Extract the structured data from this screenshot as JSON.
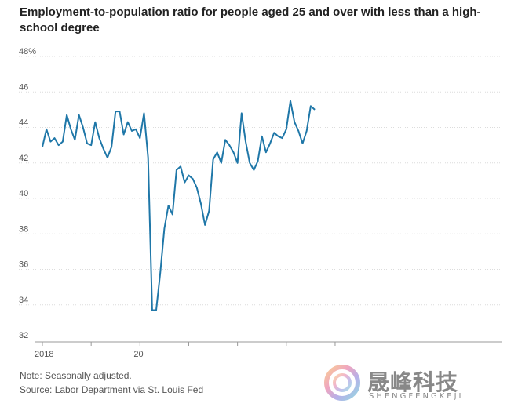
{
  "chart_data": {
    "type": "line",
    "title": "Employment-to-population ratio for people aged 25 and over with less than a high-school degree",
    "ylim": [
      32,
      48
    ],
    "yticks": [
      32,
      34,
      36,
      38,
      40,
      42,
      44,
      46,
      48
    ],
    "ytick_labels": [
      "32",
      "34",
      "36",
      "38",
      "40",
      "42",
      "44",
      "46",
      "48%"
    ],
    "x_start": "2018-01",
    "xtick_labels": [
      {
        "month_index": 0,
        "label": "2018"
      },
      {
        "month_index": 24,
        "label": "'20"
      }
    ],
    "minor_year_ticks": [
      12,
      36,
      48,
      60,
      72
    ],
    "series": [
      {
        "color": "#1f77a8",
        "values": [
          42.9,
          43.9,
          43.2,
          43.4,
          43.0,
          43.2,
          44.7,
          43.9,
          43.3,
          44.7,
          44.0,
          43.1,
          43.0,
          44.3,
          43.4,
          42.8,
          42.3,
          42.9,
          44.9,
          44.9,
          43.6,
          44.3,
          43.8,
          43.9,
          43.4,
          44.8,
          42.3,
          33.7,
          33.7,
          35.8,
          38.3,
          39.6,
          39.1,
          41.6,
          41.8,
          40.9,
          41.3,
          41.1,
          40.6,
          39.7,
          38.5,
          39.3,
          42.2,
          42.6,
          42.0,
          43.3,
          43.0,
          42.6,
          42.0,
          44.8,
          43.2,
          42.0,
          41.6,
          42.1,
          43.5,
          42.6,
          43.1,
          43.7,
          43.5,
          43.4,
          43.9,
          45.5,
          44.3,
          43.8,
          43.1,
          43.8,
          45.2,
          45.0
        ]
      }
    ]
  },
  "notes": {
    "note": "Note: Seasonally adjusted.",
    "source": "Source: Labor Department via St. Louis Fed"
  },
  "watermark": {
    "text": "晟峰科技",
    "sub": "SHENGFENGKEJI"
  }
}
